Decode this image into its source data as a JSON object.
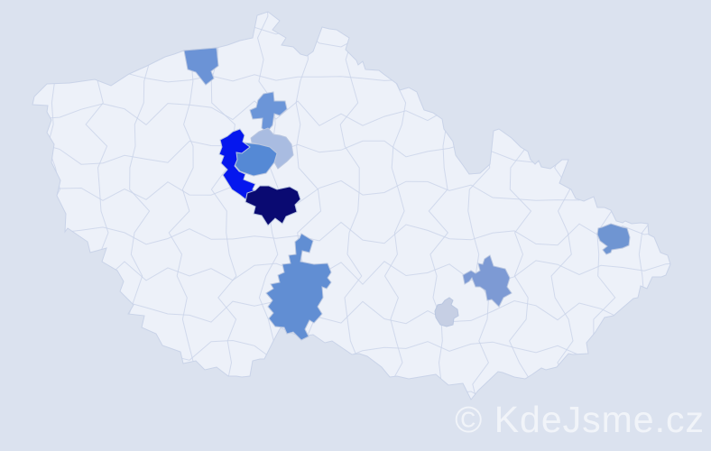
{
  "map": {
    "type": "choropleth-district-map",
    "watermark": "© KdeJsme.cz",
    "colors": {
      "background": "#dbe2ef",
      "land": "#edf1f9",
      "district_border": "#c9d3e8",
      "watermark_text": "#ffffff"
    },
    "shade_scale": {
      "description": "darker blue = more occurrences",
      "levels": [
        "#edf1f9",
        "#c6cfe4",
        "#a9bce1",
        "#7d9ad4",
        "#6b93d6",
        "#5589d5",
        "#0517ee",
        "#0a0a72"
      ]
    },
    "highlighted_districts": [
      {
        "id": "north",
        "shade": "medium-blue",
        "color": "#6b93d6"
      },
      {
        "id": "north-central",
        "shade": "medium-blue",
        "color": "#6b95d8"
      },
      {
        "id": "center-light",
        "shade": "light-periwinkle",
        "color": "#a9bce1"
      },
      {
        "id": "center",
        "shade": "medium-blue",
        "color": "#5589d5"
      },
      {
        "id": "center-bright",
        "shade": "bright-blue",
        "color": "#0517ee"
      },
      {
        "id": "center-dark",
        "shade": "dark-navy",
        "color": "#0a0a72"
      },
      {
        "id": "south",
        "shade": "medium-blue",
        "color": "#618ed3"
      },
      {
        "id": "south-east",
        "shade": "medium-light-blue",
        "color": "#7d9ad4"
      },
      {
        "id": "east-pale",
        "shade": "pale-blue-grey",
        "color": "#c6cfe4"
      },
      {
        "id": "far-east",
        "shade": "medium-blue",
        "color": "#6f95d2"
      }
    ]
  }
}
